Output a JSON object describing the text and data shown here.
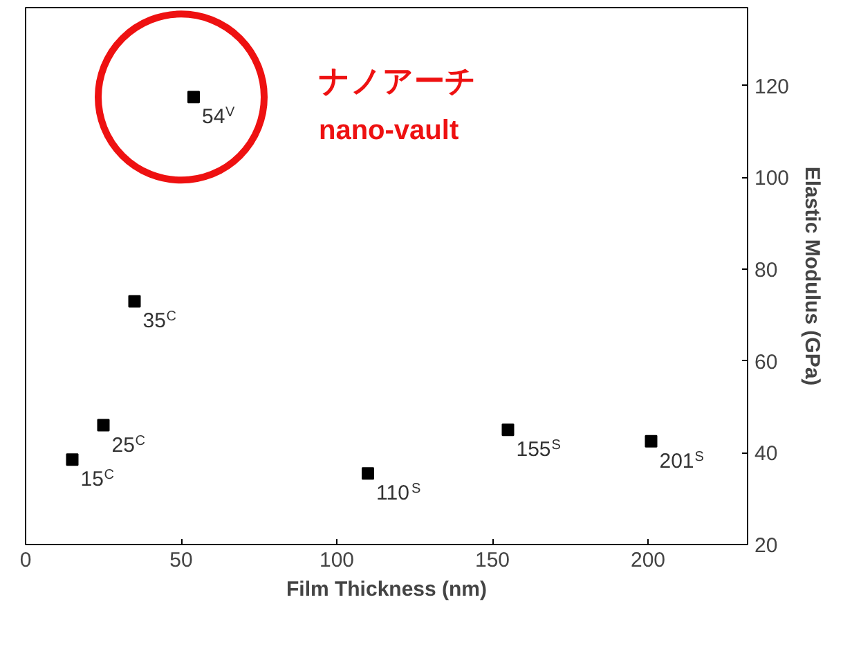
{
  "chart_data": {
    "type": "scatter",
    "xlabel": "Film Thickness (nm)",
    "ylabel": "Elastic Modulus (GPa)",
    "x": [
      15,
      25,
      35,
      54,
      110,
      155,
      201
    ],
    "series": [
      {
        "color": "#000000",
        "values": [
          38.5,
          46,
          73,
          117.5,
          35.5,
          45,
          42.5
        ]
      }
    ],
    "marker": "square",
    "grid": false,
    "xlim": [
      0,
      232
    ],
    "xticks": [
      0,
      50,
      100,
      150,
      200
    ],
    "ylim": [
      20,
      137
    ],
    "yticks": [
      20,
      40,
      60,
      80,
      100,
      120
    ],
    "annotations": [
      {
        "text": "15$^{C}$",
        "x": 15,
        "y": 38.5
      },
      {
        "text": "25$^{C}$",
        "x": 25,
        "y": 46
      },
      {
        "text": "35$^{C}$",
        "x": 35,
        "y": 73
      },
      {
        "text": "54$^{V}$",
        "x": 54,
        "y": 117.5
      },
      {
        "text": "110$^{S}$",
        "x": 110,
        "y": 35.5
      },
      {
        "text": "155$^{S}$",
        "x": 155,
        "y": 45
      },
      {
        "text": "201$^{S}$",
        "x": 201,
        "y": 42.5
      },
      "ナノアーチ",
      "nano-vault"
    ]
  }
}
